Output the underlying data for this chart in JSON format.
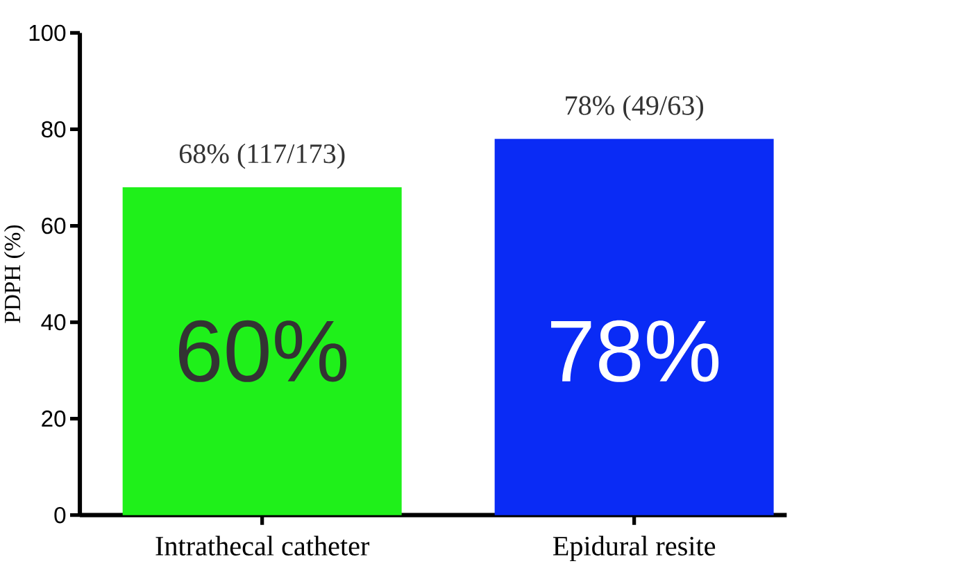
{
  "chart_data": {
    "type": "bar",
    "ylabel": "PDPH (%)",
    "categories": [
      "Intrathecal catheter",
      "Epidural resite"
    ],
    "values": [
      68,
      78
    ],
    "colors": [
      "#1ff01a",
      "#0a2bf5"
    ],
    "value_labels": [
      "68% (117/173)",
      "78% (49/63)"
    ],
    "ylim": [
      0,
      100
    ],
    "yticks": [
      0,
      20,
      40,
      60,
      80,
      100
    ],
    "grid": false,
    "annotations": [
      "60%",
      "78%"
    ]
  }
}
